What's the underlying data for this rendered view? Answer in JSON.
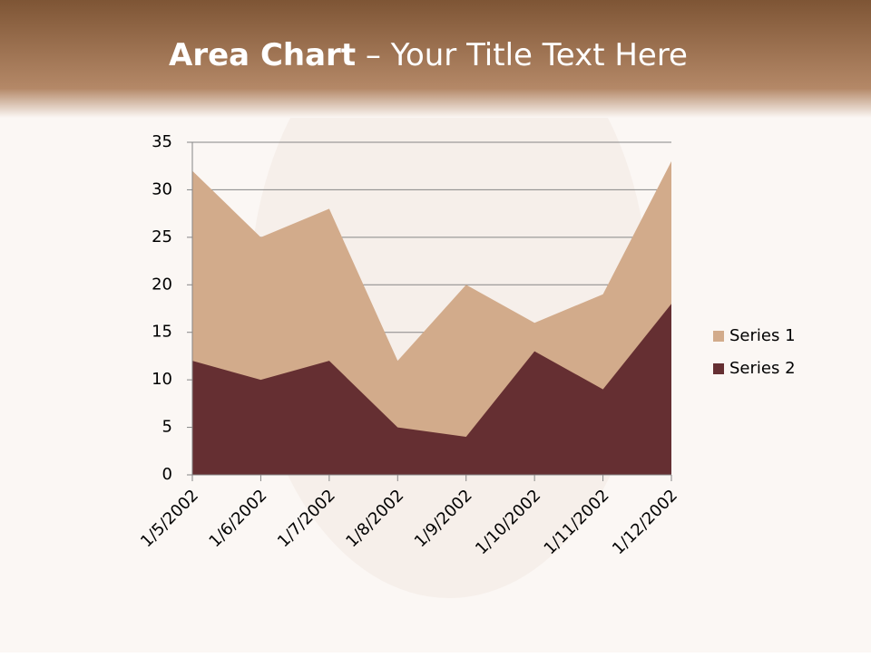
{
  "chart_data": {
    "type": "area",
    "title": [
      "Area Chart",
      "– Your Title Text Here"
    ],
    "categories": [
      "1/5/2002",
      "1/6/2002",
      "1/7/2002",
      "1/8/2002",
      "1/9/2002",
      "1/10/2002",
      "1/11/2002",
      "1/12/2002"
    ],
    "series": [
      {
        "name": "Series 1",
        "color": "#d2ab8b",
        "values": [
          32,
          25,
          28,
          12,
          20,
          16,
          19,
          33
        ]
      },
      {
        "name": "Series 2",
        "color": "#652f32",
        "values": [
          12,
          10,
          12,
          5,
          4,
          13,
          9,
          18
        ]
      }
    ],
    "ylim": [
      0,
      35
    ],
    "yticks": [
      0,
      5,
      10,
      15,
      20,
      25,
      30,
      35
    ],
    "grid": true,
    "legend": "right"
  }
}
